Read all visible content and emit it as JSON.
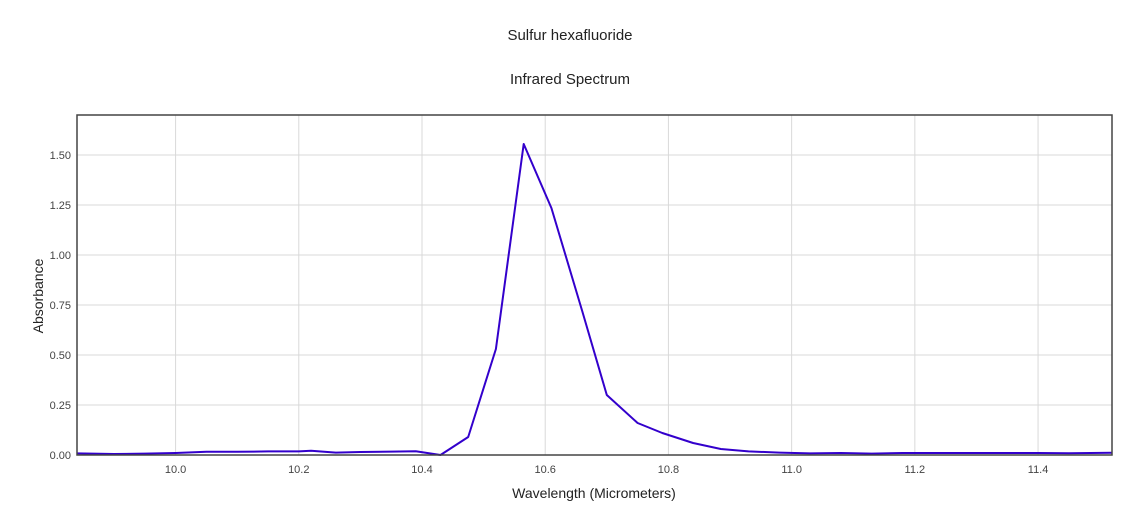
{
  "chart_data": {
    "type": "line",
    "title": "Sulfur hexafluoride",
    "subtitle": "Infrared Spectrum",
    "xlabel": "Wavelength (Micrometers)",
    "ylabel": "Absorbance",
    "xlim": [
      9.84,
      11.52
    ],
    "ylim": [
      0,
      1.7
    ],
    "xticks": [
      "10.0",
      "10.2",
      "10.4",
      "10.6",
      "10.8",
      "11.0",
      "11.2",
      "11.4"
    ],
    "yticks": [
      "0.00",
      "0.25",
      "0.50",
      "0.75",
      "1.00",
      "1.25",
      "1.50"
    ],
    "grid": true,
    "line_color": "#3300cc",
    "series": [
      {
        "x": [
          9.84,
          9.9,
          9.95,
          10.0,
          10.05,
          10.1,
          10.15,
          10.2,
          10.22,
          10.26,
          10.3,
          10.35,
          10.39,
          10.43,
          10.475,
          10.52,
          10.565,
          10.61,
          10.66,
          10.7,
          10.75,
          10.79,
          10.84,
          10.885,
          10.93,
          10.98,
          11.03,
          11.08,
          11.13,
          11.18,
          11.25,
          11.3,
          11.35,
          11.4,
          11.45,
          11.52
        ],
        "y": [
          0.008,
          0.005,
          0.007,
          0.01,
          0.016,
          0.016,
          0.018,
          0.018,
          0.021,
          0.012,
          0.015,
          0.017,
          0.019,
          0.0,
          0.09,
          0.53,
          1.555,
          1.235,
          0.72,
          0.3,
          0.16,
          0.11,
          0.06,
          0.03,
          0.018,
          0.012,
          0.008,
          0.01,
          0.007,
          0.01,
          0.01,
          0.01,
          0.01,
          0.01,
          0.009,
          0.011
        ]
      }
    ]
  }
}
